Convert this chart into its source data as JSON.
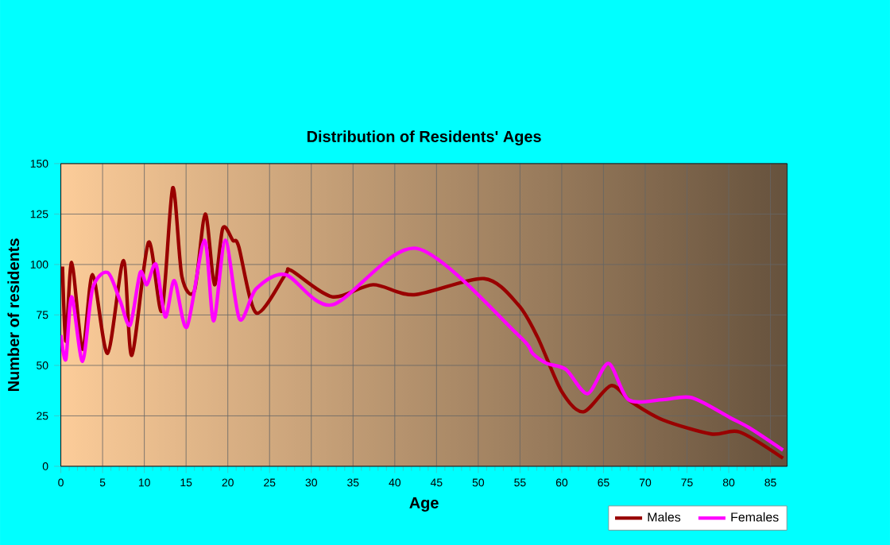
{
  "chart_data": {
    "type": "line",
    "title": "Distribution of Residents' Ages",
    "xlabel": "Age",
    "ylabel": "Number of residents",
    "xlim": [
      0,
      87
    ],
    "xticks": [
      0,
      5,
      10,
      15,
      20,
      25,
      30,
      35,
      40,
      45,
      50,
      55,
      60,
      65,
      70,
      75,
      80,
      85
    ],
    "ylim": [
      0,
      150
    ],
    "yticks": [
      0,
      25,
      50,
      75,
      100,
      125,
      150
    ],
    "grid": true,
    "legend": "bottom right",
    "series": [
      {
        "name": "Males",
        "color": "#990000",
        "x": [
          0.2,
          0.6,
          1.3,
          2.6,
          3.8,
          5.6,
          7.5,
          8.5,
          10.5,
          12.1,
          13.4,
          14.5,
          16,
          17.3,
          18.4,
          19.4,
          20.6,
          21.3,
          23.4,
          26.9,
          27.6,
          32.5,
          37.4,
          42.3,
          50.7,
          54.8,
          57.1,
          60,
          62.6,
          65.9,
          68.3,
          72.1,
          77.9,
          81.3,
          86.5
        ],
        "values": [
          99,
          62,
          101,
          58,
          95,
          56,
          102,
          55,
          111,
          77,
          138,
          94,
          87,
          125,
          90,
          118,
          112,
          109,
          76,
          95,
          97,
          84,
          90,
          85,
          93,
          80,
          64,
          37,
          27,
          40,
          32,
          23,
          16,
          17,
          4
        ]
      },
      {
        "name": "Females",
        "color": "#ff00ff",
        "x": [
          0,
          0.6,
          1.3,
          2.6,
          3.8,
          5.6,
          7.1,
          8.3,
          9.5,
          10.3,
          11.4,
          12.5,
          13.6,
          15.1,
          17.2,
          18.3,
          19.7,
          21.4,
          23.4,
          26.9,
          32.5,
          42.6,
          54.8,
          56.5,
          58.2,
          60.5,
          63.1,
          65.6,
          68,
          72.1,
          75.6,
          80.2,
          82.5,
          86.5
        ],
        "values": [
          65,
          53,
          84,
          52,
          88,
          96,
          82,
          70,
          96,
          90,
          100,
          74,
          92,
          69,
          112,
          72,
          112,
          73,
          88,
          95,
          80,
          108,
          65,
          56,
          51,
          48,
          36,
          51,
          33,
          33,
          34,
          24,
          19,
          8
        ]
      }
    ]
  }
}
